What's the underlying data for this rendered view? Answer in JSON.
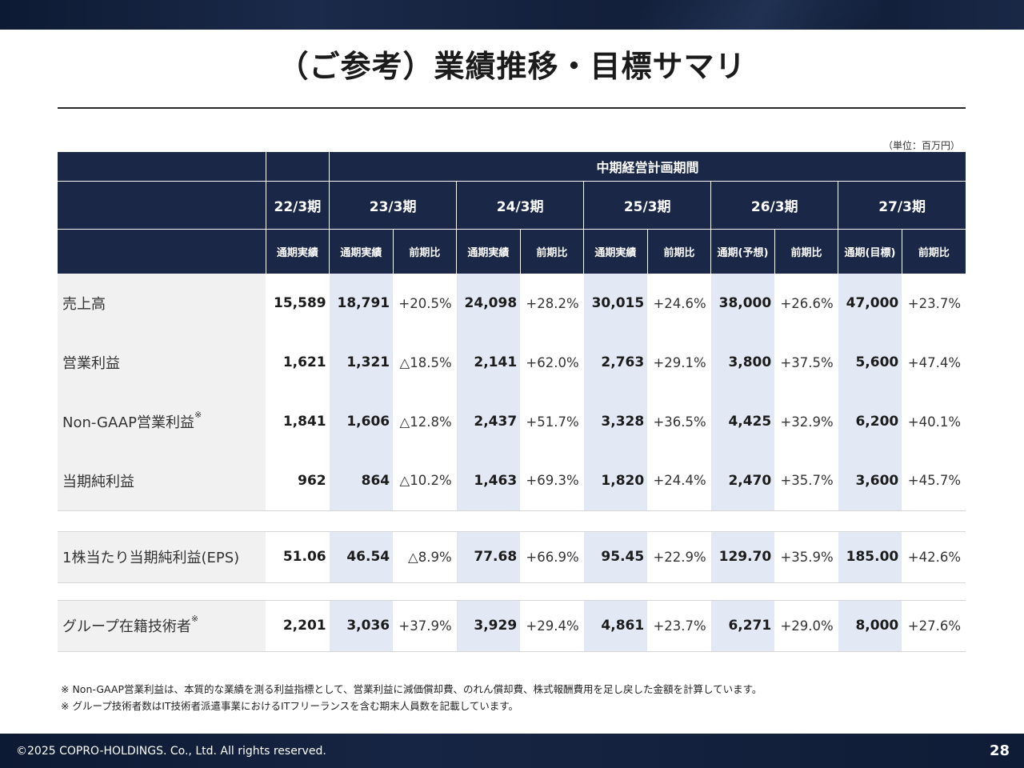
{
  "title": "（ご参考）業績推移・目標サマリ",
  "unit": "（単位：百万円）",
  "table": {
    "plan_header": "中期経営計画期間",
    "periods": [
      "22/3期",
      "23/3期",
      "24/3期",
      "25/3期",
      "26/3期",
      "27/3期"
    ],
    "subheaders": [
      "通期実績",
      "通期実績",
      "前期比",
      "通期実績",
      "前期比",
      "通期実績",
      "前期比",
      "通期(予想)",
      "前期比",
      "通期(目標)",
      "前期比"
    ],
    "rows": [
      {
        "label": "売上高",
        "note": "",
        "values": [
          "15,589",
          "18,791",
          "+20.5%",
          "24,098",
          "+28.2%",
          "30,015",
          "+24.6%",
          "38,000",
          "+26.6%",
          "47,000",
          "+23.7%"
        ]
      },
      {
        "label": "営業利益",
        "note": "",
        "values": [
          "1,621",
          "1,321",
          "△18.5%",
          "2,141",
          "+62.0%",
          "2,763",
          "+29.1%",
          "3,800",
          "+37.5%",
          "5,600",
          "+47.4%"
        ]
      },
      {
        "label": "Non-GAAP営業利益",
        "note": "※",
        "values": [
          "1,841",
          "1,606",
          "△12.8%",
          "2,437",
          "+51.7%",
          "3,328",
          "+36.5%",
          "4,425",
          "+32.9%",
          "6,200",
          "+40.1%"
        ]
      },
      {
        "label": "当期純利益",
        "note": "",
        "values": [
          "962",
          "864",
          "△10.2%",
          "1,463",
          "+69.3%",
          "1,820",
          "+24.4%",
          "2,470",
          "+35.7%",
          "3,600",
          "+45.7%"
        ]
      },
      {
        "label": "1株当たり当期純利益(EPS)",
        "note": "",
        "values": [
          "51.06",
          "46.54",
          "△8.9%",
          "77.68",
          "+66.9%",
          "95.45",
          "+22.9%",
          "129.70",
          "+35.9%",
          "185.00",
          "+42.6%"
        ]
      },
      {
        "label": "グループ在籍技術者",
        "note": "※",
        "values": [
          "2,201",
          "3,036",
          "+37.9%",
          "3,929",
          "+29.4%",
          "4,861",
          "+23.7%",
          "6,271",
          "+29.0%",
          "8,000",
          "+27.6%"
        ]
      }
    ]
  },
  "footnotes": [
    "※ Non-GAAP営業利益は、本質的な業績を測る利益指標として、営業利益に減価償却費、のれん償却費、株式報酬費用を足し戻した金額を計算しています。",
    "※ グループ技術者数はIT技術者派遣事業におけるITフリーランスを含む期末人員数を記載しています。"
  ],
  "footer": {
    "copyright": "©2025 COPRO-HOLDINGS. Co., Ltd. All rights reserved.",
    "page_number": "28"
  }
}
